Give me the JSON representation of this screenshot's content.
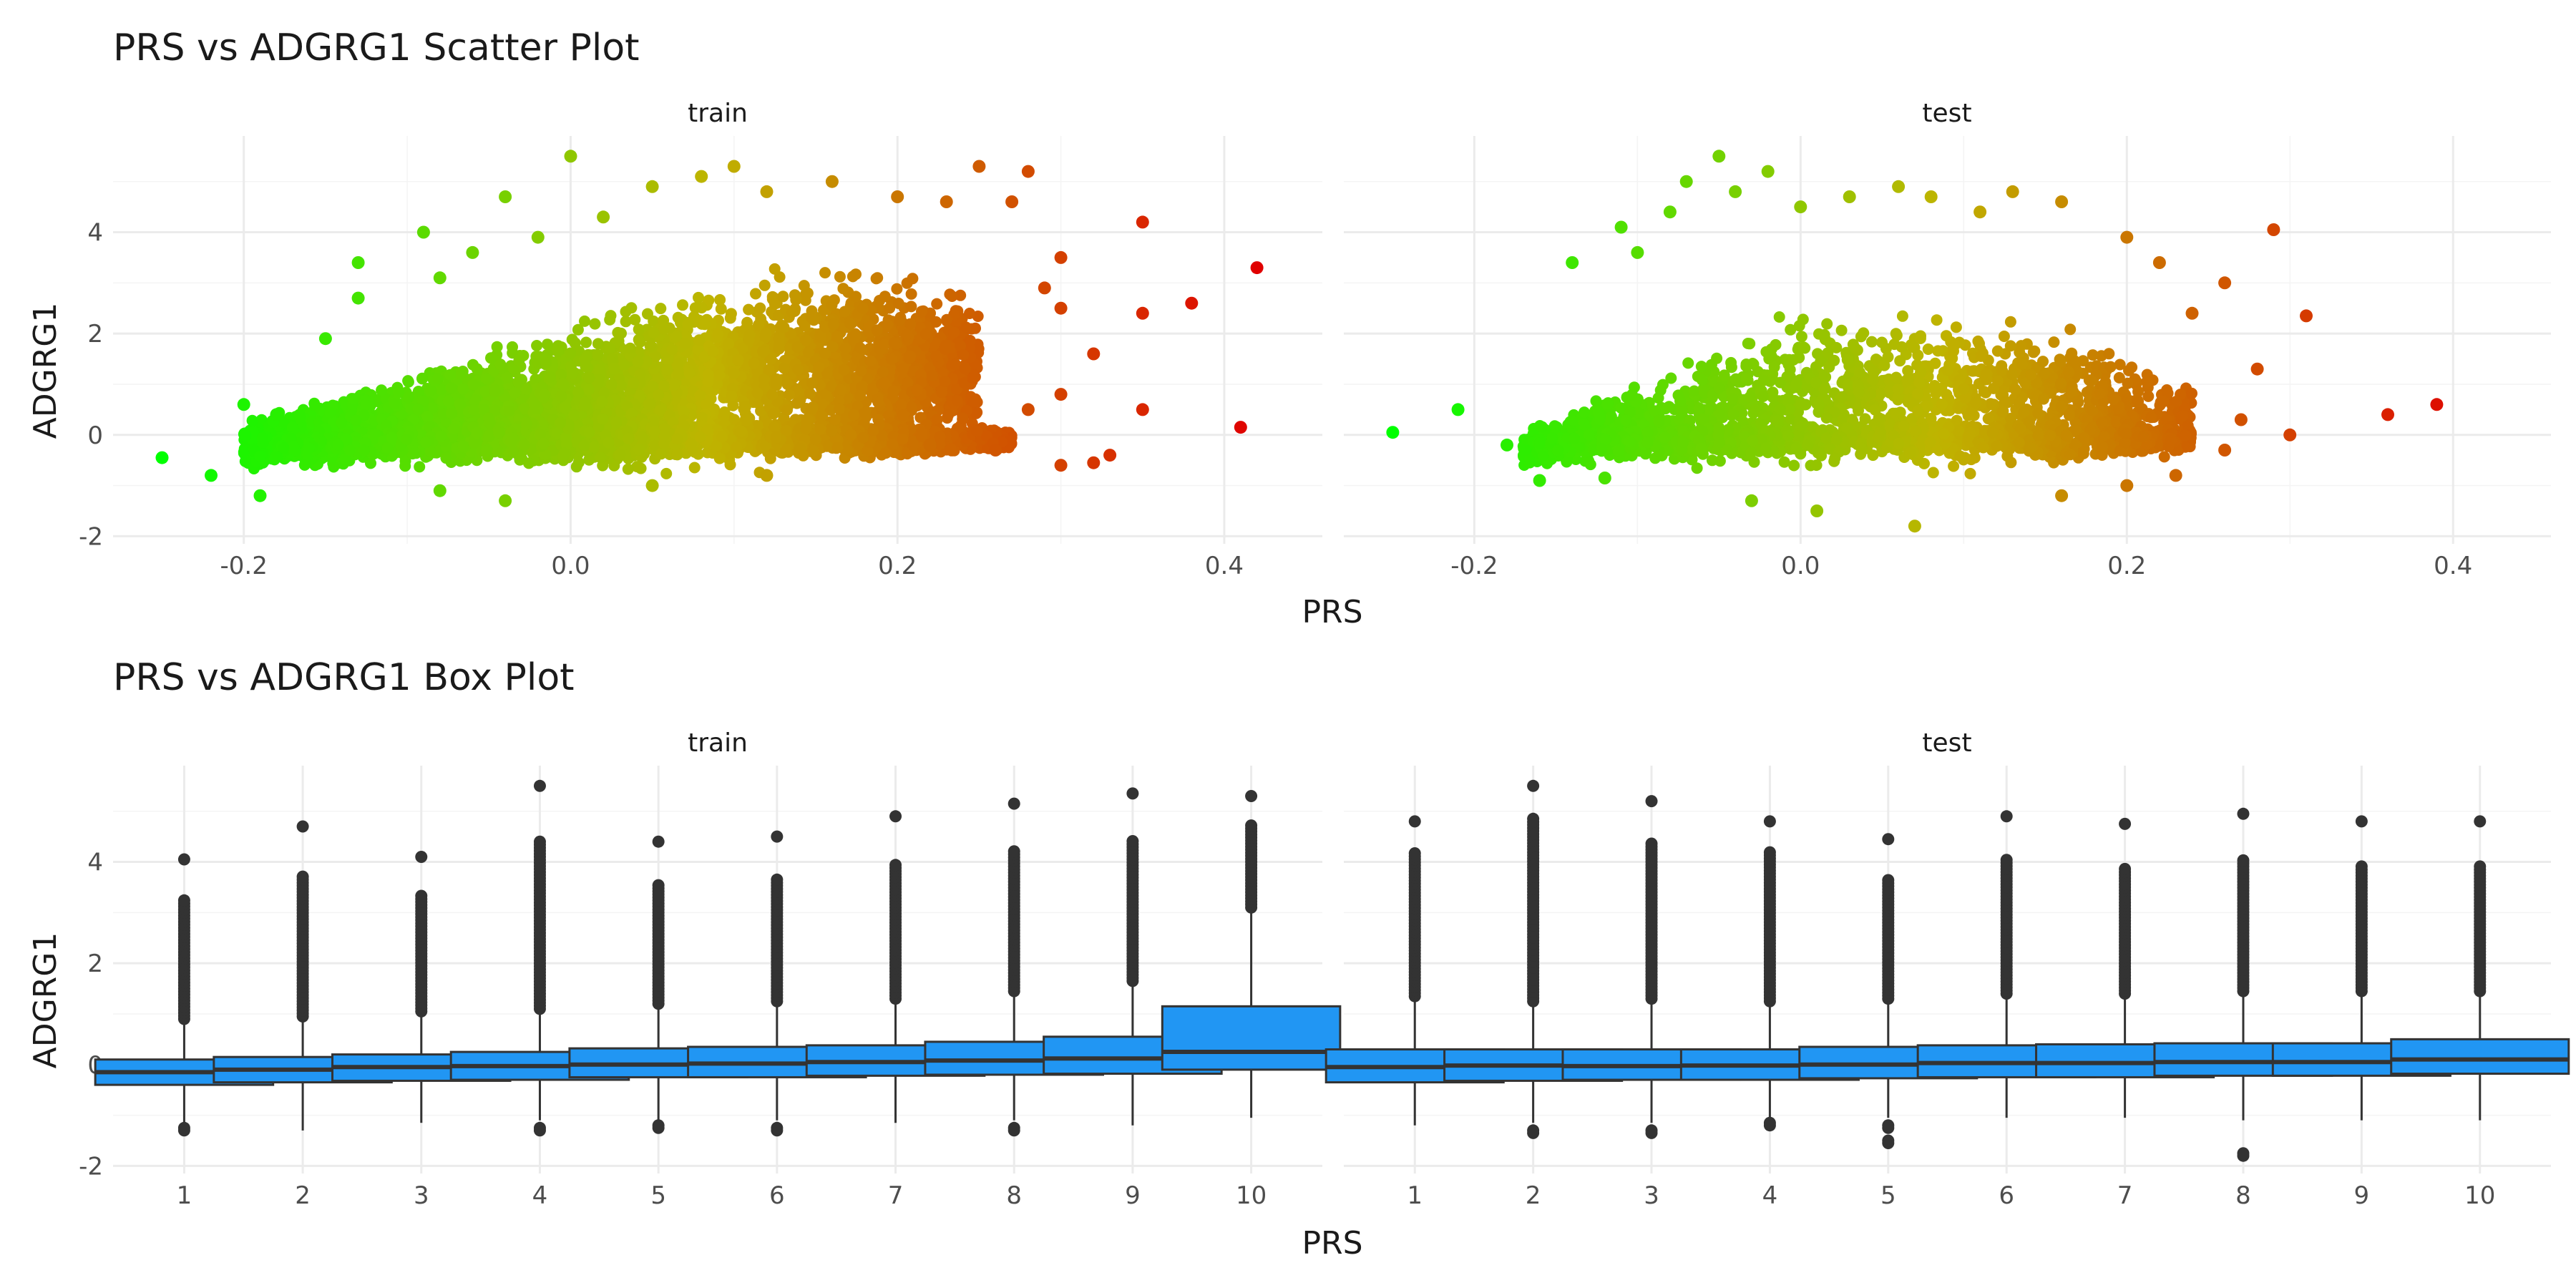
{
  "colors": {
    "low": "#00ff00",
    "mid": "#bfb400",
    "high": "#e00000",
    "box_fill": "#2196f3",
    "box_line": "#333333",
    "outlier": "#333333"
  },
  "chart_data": [
    {
      "type": "scatter",
      "title": "PRS vs ADGRG1 Scatter Plot",
      "xlabel": "PRS",
      "ylabel": "ADGRG1",
      "xlim": [
        -0.28,
        0.46
      ],
      "ylim": [
        -2.15,
        5.9
      ],
      "x_ticks": [
        -0.2,
        0.0,
        0.2,
        0.4
      ],
      "x_tick_labels": [
        "-0.2",
        "0.0",
        "0.2",
        "0.4"
      ],
      "y_ticks": [
        -2,
        0,
        2,
        4
      ],
      "y_tick_labels": [
        "-2",
        "0",
        "2",
        "4"
      ],
      "color_by": "x",
      "grid": true,
      "legend": "none",
      "panels": [
        {
          "strip": "train",
          "points": [
            [
              -0.25,
              -0.45
            ],
            [
              -0.22,
              -0.8
            ],
            [
              -0.19,
              -1.2
            ],
            [
              -0.2,
              0.6
            ],
            [
              -0.18,
              0.4
            ],
            [
              -0.15,
              1.9
            ],
            [
              -0.13,
              2.7
            ],
            [
              -0.13,
              3.4
            ],
            [
              -0.09,
              4.0
            ],
            [
              -0.08,
              3.1
            ],
            [
              -0.06,
              3.6
            ],
            [
              -0.04,
              4.7
            ],
            [
              -0.02,
              3.9
            ],
            [
              0.02,
              4.3
            ],
            [
              0.0,
              5.5
            ],
            [
              0.05,
              4.9
            ],
            [
              0.08,
              5.1
            ],
            [
              0.1,
              5.3
            ],
            [
              0.12,
              4.8
            ],
            [
              0.16,
              5.0
            ],
            [
              0.2,
              4.7
            ],
            [
              0.23,
              4.6
            ],
            [
              0.25,
              5.3
            ],
            [
              0.28,
              5.2
            ],
            [
              0.27,
              4.6
            ],
            [
              0.3,
              3.5
            ],
            [
              0.29,
              2.9
            ],
            [
              0.3,
              2.5
            ],
            [
              0.32,
              1.6
            ],
            [
              0.3,
              0.8
            ],
            [
              0.3,
              -0.6
            ],
            [
              0.32,
              -0.55
            ],
            [
              0.33,
              -0.4
            ],
            [
              0.35,
              4.2
            ],
            [
              0.35,
              2.4
            ],
            [
              0.35,
              0.5
            ],
            [
              0.38,
              2.6
            ],
            [
              0.42,
              3.3
            ],
            [
              0.41,
              0.15
            ],
            [
              0.26,
              -0.3
            ],
            [
              0.28,
              0.5
            ],
            [
              0.22,
              -0.2
            ],
            [
              0.12,
              -0.8
            ],
            [
              0.05,
              -1.0
            ],
            [
              -0.04,
              -1.3
            ],
            [
              -0.08,
              -1.1
            ]
          ],
          "clusters": [
            {
              "x": [
                -0.2,
                0.0,
                0.15,
                0.25
              ],
              "y_low": [
                -0.75,
                -0.95,
                -0.85,
                -0.5
              ],
              "y_high": [
                0.3,
                2.4,
                3.8,
                3.0
              ],
              "count": 3500
            },
            {
              "x": [
                -0.18,
                0.0,
                0.2,
                0.27
              ],
              "y_low": [
                -0.55,
                -0.6,
                -0.55,
                -0.35
              ],
              "y_high": [
                0.05,
                0.45,
                0.4,
                0.15
              ],
              "count": 2000
            }
          ]
        },
        {
          "strip": "test",
          "points": [
            [
              -0.25,
              0.05
            ],
            [
              -0.21,
              0.5
            ],
            [
              -0.18,
              -0.2
            ],
            [
              -0.16,
              -0.9
            ],
            [
              -0.14,
              3.4
            ],
            [
              -0.11,
              4.1
            ],
            [
              -0.1,
              3.6
            ],
            [
              -0.08,
              4.4
            ],
            [
              -0.07,
              5.0
            ],
            [
              -0.05,
              5.5
            ],
            [
              -0.04,
              4.8
            ],
            [
              -0.02,
              5.2
            ],
            [
              0.0,
              4.5
            ],
            [
              0.03,
              4.7
            ],
            [
              0.06,
              4.9
            ],
            [
              0.08,
              4.7
            ],
            [
              0.11,
              4.4
            ],
            [
              0.13,
              4.8
            ],
            [
              0.16,
              4.6
            ],
            [
              0.2,
              3.9
            ],
            [
              0.22,
              3.4
            ],
            [
              0.24,
              2.4
            ],
            [
              0.26,
              3.0
            ],
            [
              0.28,
              1.3
            ],
            [
              0.27,
              0.3
            ],
            [
              0.3,
              0.0
            ],
            [
              0.29,
              4.05
            ],
            [
              0.31,
              2.35
            ],
            [
              0.36,
              0.4
            ],
            [
              0.39,
              0.6
            ],
            [
              0.2,
              -1.0
            ],
            [
              0.07,
              -1.8
            ],
            [
              0.01,
              -1.5
            ],
            [
              -0.03,
              -1.3
            ],
            [
              0.16,
              -1.2
            ],
            [
              0.23,
              -0.8
            ],
            [
              0.26,
              -0.3
            ],
            [
              -0.12,
              -0.85
            ]
          ],
          "clusters": [
            {
              "x": [
                -0.17,
                0.0,
                0.15,
                0.24
              ],
              "y_low": [
                -0.75,
                -1.0,
                -0.95,
                -0.65
              ],
              "y_high": [
                0.2,
                2.7,
                2.6,
                1.2
              ],
              "count": 1500
            },
            {
              "x": [
                -0.16,
                0.0,
                0.18,
                0.24
              ],
              "y_low": [
                -0.5,
                -0.55,
                -0.55,
                -0.35
              ],
              "y_high": [
                0.05,
                0.4,
                0.35,
                0.1
              ],
              "count": 900
            }
          ]
        }
      ]
    },
    {
      "type": "box",
      "title": "PRS vs ADGRG1 Box Plot",
      "xlabel": "PRS",
      "ylabel": "ADGRG1",
      "categories": [
        "1",
        "2",
        "3",
        "4",
        "5",
        "6",
        "7",
        "8",
        "9",
        "10"
      ],
      "ylim": [
        -2.15,
        5.9
      ],
      "y_ticks": [
        -2,
        0,
        2,
        4
      ],
      "y_tick_labels": [
        "-2",
        "0",
        "2",
        "4"
      ],
      "grid": true,
      "legend": "none",
      "panels": [
        {
          "strip": "train",
          "boxes": [
            {
              "q1": -0.4,
              "median": -0.15,
              "q3": 0.1,
              "lower": -1.2,
              "upper": 0.85,
              "outliers_high": [
                0.9,
                4.05
              ],
              "outliers_low": [
                -1.3
              ]
            },
            {
              "q1": -0.35,
              "median": -0.1,
              "q3": 0.15,
              "lower": -1.3,
              "upper": 0.9,
              "outliers_high": [
                0.95,
                4.7
              ],
              "outliers_low": []
            },
            {
              "q1": -0.32,
              "median": -0.05,
              "q3": 0.2,
              "lower": -1.15,
              "upper": 1.0,
              "outliers_high": [
                1.05,
                4.1
              ],
              "outliers_low": []
            },
            {
              "q1": -0.3,
              "median": -0.03,
              "q3": 0.25,
              "lower": -1.1,
              "upper": 1.05,
              "outliers_high": [
                1.1,
                5.5
              ],
              "outliers_low": [
                -1.3
              ]
            },
            {
              "q1": -0.25,
              "median": 0.0,
              "q3": 0.32,
              "lower": -1.1,
              "upper": 1.15,
              "outliers_high": [
                1.2,
                4.4
              ],
              "outliers_low": [
                -1.25
              ]
            },
            {
              "q1": -0.25,
              "median": 0.02,
              "q3": 0.35,
              "lower": -1.1,
              "upper": 1.2,
              "outliers_high": [
                1.25,
                4.5
              ],
              "outliers_low": [
                -1.3
              ]
            },
            {
              "q1": -0.22,
              "median": 0.05,
              "q3": 0.38,
              "lower": -1.15,
              "upper": 1.25,
              "outliers_high": [
                1.3,
                4.9
              ],
              "outliers_low": []
            },
            {
              "q1": -0.2,
              "median": 0.08,
              "q3": 0.45,
              "lower": -1.1,
              "upper": 1.4,
              "outliers_high": [
                1.45,
                5.15
              ],
              "outliers_low": [
                -1.3
              ]
            },
            {
              "q1": -0.18,
              "median": 0.12,
              "q3": 0.55,
              "lower": -1.2,
              "upper": 1.6,
              "outliers_high": [
                1.65,
                5.35
              ],
              "outliers_low": []
            },
            {
              "q1": -0.1,
              "median": 0.25,
              "q3": 1.15,
              "lower": -1.05,
              "upper": 3.05,
              "outliers_high": [
                3.1,
                5.3
              ],
              "outliers_low": []
            }
          ]
        },
        {
          "strip": "test",
          "boxes": [
            {
              "q1": -0.35,
              "median": -0.05,
              "q3": 0.3,
              "lower": -1.2,
              "upper": 1.3,
              "outliers_high": [
                1.35,
                4.2,
                4.8
              ],
              "outliers_low": []
            },
            {
              "q1": -0.32,
              "median": -0.02,
              "q3": 0.3,
              "lower": -1.15,
              "upper": 1.2,
              "outliers_high": [
                1.25,
                4.85,
                5.5
              ],
              "outliers_low": [
                -1.35
              ]
            },
            {
              "q1": -0.3,
              "median": -0.03,
              "q3": 0.3,
              "lower": -1.15,
              "upper": 1.25,
              "outliers_high": [
                1.3,
                4.4,
                5.2
              ],
              "outliers_low": [
                -1.35
              ]
            },
            {
              "q1": -0.3,
              "median": -0.02,
              "q3": 0.3,
              "lower": -1.1,
              "upper": 1.2,
              "outliers_high": [
                1.25,
                4.25,
                4.8
              ],
              "outliers_low": [
                -1.2
              ]
            },
            {
              "q1": -0.27,
              "median": 0.0,
              "q3": 0.35,
              "lower": -1.05,
              "upper": 1.25,
              "outliers_high": [
                1.3,
                4.45
              ],
              "outliers_low": [
                -1.25,
                -1.55
              ]
            },
            {
              "q1": -0.25,
              "median": 0.03,
              "q3": 0.38,
              "lower": -1.05,
              "upper": 1.35,
              "outliers_high": [
                1.4,
                4.1,
                4.9
              ],
              "outliers_low": []
            },
            {
              "q1": -0.25,
              "median": 0.03,
              "q3": 0.4,
              "lower": -1.05,
              "upper": 1.35,
              "outliers_high": [
                1.4,
                4.75
              ],
              "outliers_low": []
            },
            {
              "q1": -0.22,
              "median": 0.05,
              "q3": 0.42,
              "lower": -1.1,
              "upper": 1.4,
              "outliers_high": [
                1.45,
                4.95
              ],
              "outliers_low": [
                -1.8
              ]
            },
            {
              "q1": -0.22,
              "median": 0.05,
              "q3": 0.42,
              "lower": -1.1,
              "upper": 1.4,
              "outliers_high": [
                1.45,
                4.8
              ],
              "outliers_low": []
            },
            {
              "q1": -0.18,
              "median": 0.1,
              "q3": 0.5,
              "lower": -1.1,
              "upper": 1.4,
              "outliers_high": [
                1.45,
                4.8
              ],
              "outliers_low": []
            }
          ]
        }
      ]
    }
  ]
}
